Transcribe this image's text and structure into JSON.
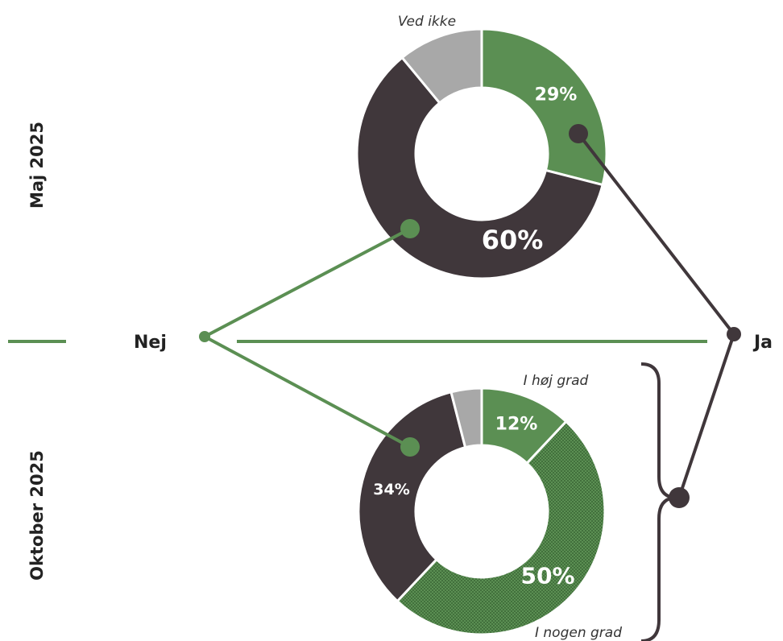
{
  "chart_data": {
    "type": "pie",
    "axis_labels": {
      "left": "Nej",
      "right": "Ja"
    },
    "charts": [
      {
        "period": "Maj 2025",
        "slices": [
          {
            "key": "ja",
            "value": 29,
            "label": "29%",
            "color": "#5b8f53"
          },
          {
            "key": "nej",
            "value": 60,
            "label": "60%",
            "color": "#40373b"
          },
          {
            "key": "ved_ikke",
            "value": 11,
            "label": "",
            "color": "#a8a8a8"
          }
        ],
        "annotation": "Ved ikke"
      },
      {
        "period": "Oktober 2025",
        "slices": [
          {
            "key": "i_hoj_grad",
            "value": 12,
            "label": "12%",
            "color": "#5b8f53"
          },
          {
            "key": "i_nogen_grad",
            "value": 50,
            "label": "50%",
            "color": "#5b8f53",
            "pattern": "dotted"
          },
          {
            "key": "nej",
            "value": 34,
            "label": "34%",
            "color": "#40373b"
          },
          {
            "key": "ved_ikke",
            "value": 4,
            "label": "",
            "color": "#a8a8a8"
          }
        ],
        "annotations": [
          "I høj grad",
          "I nogen grad"
        ]
      }
    ],
    "colors": {
      "green": "#5b8f53",
      "dark": "#40373b",
      "grey": "#a8a8a8"
    }
  }
}
